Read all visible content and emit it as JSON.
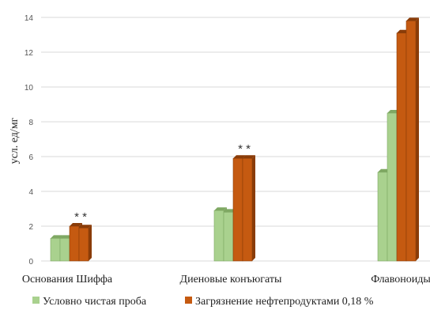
{
  "chart_data": {
    "type": "bar",
    "ylabel": "усл. ед/мг",
    "ylim": [
      0,
      14
    ],
    "yticks": [
      0,
      2,
      4,
      6,
      8,
      10,
      12,
      14
    ],
    "grid": true,
    "legend_position": "bottom",
    "categories": [
      "Основания Шиффа",
      "Диеновые конъюгаты",
      "Флавоноиды"
    ],
    "series": [
      {
        "name": "Условно чистая проба",
        "color": "#a9d18e",
        "values": [
          [
            1.3,
            1.3
          ],
          [
            2.9,
            2.8
          ],
          [
            5.1,
            8.5
          ]
        ]
      },
      {
        "name": "Загрязнение нефтепродуктами 0,18 %",
        "color": "#c55a11",
        "values": [
          [
            2.0,
            1.9
          ],
          [
            5.9,
            5.9
          ],
          [
            13.1,
            13.8
          ]
        ]
      }
    ],
    "annotations": [
      {
        "category": 0,
        "text": "* *"
      },
      {
        "category": 1,
        "text": "* *"
      }
    ]
  }
}
